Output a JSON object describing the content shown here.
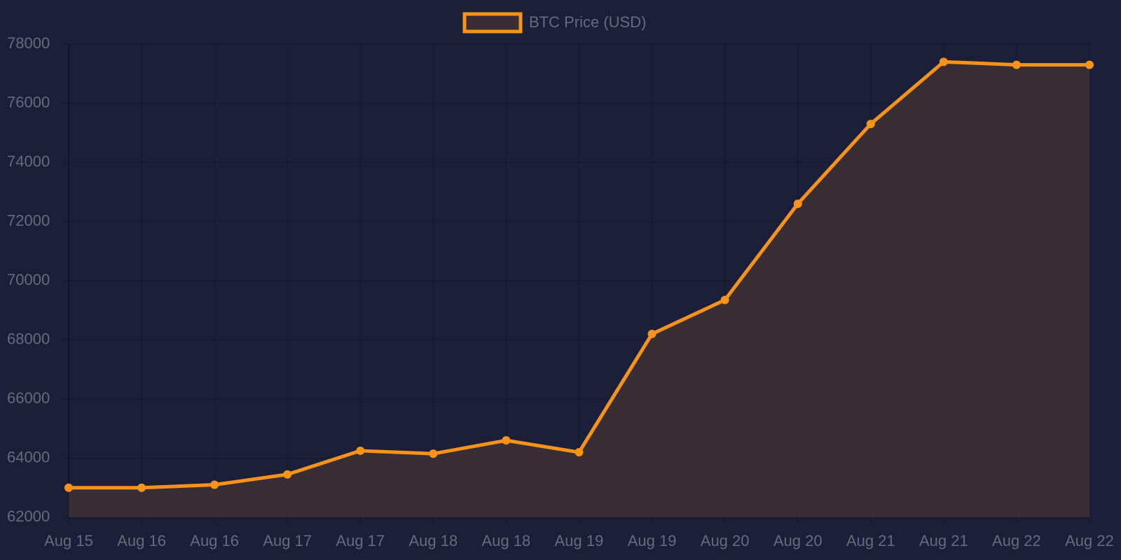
{
  "chart_data": {
    "type": "line",
    "categories": [
      "Aug 15",
      "Aug 16",
      "Aug 16",
      "Aug 17",
      "Aug 17",
      "Aug 18",
      "Aug 18",
      "Aug 19",
      "Aug 19",
      "Aug 20",
      "Aug 20",
      "Aug 21",
      "Aug 21",
      "Aug 22",
      "Aug 22"
    ],
    "series": [
      {
        "name": "BTC Price (USD)",
        "color": "#f7931a",
        "values": [
          63000,
          63000,
          63100,
          63450,
          64250,
          64150,
          64600,
          64200,
          68200,
          69350,
          72600,
          75300,
          77400,
          77300,
          77300
        ]
      }
    ],
    "fill": true,
    "ylim": [
      62000,
      78000
    ],
    "yticks": [
      62000,
      64000,
      66000,
      68000,
      70000,
      72000,
      74000,
      76000,
      78000
    ],
    "grid": true,
    "legend": "top"
  }
}
